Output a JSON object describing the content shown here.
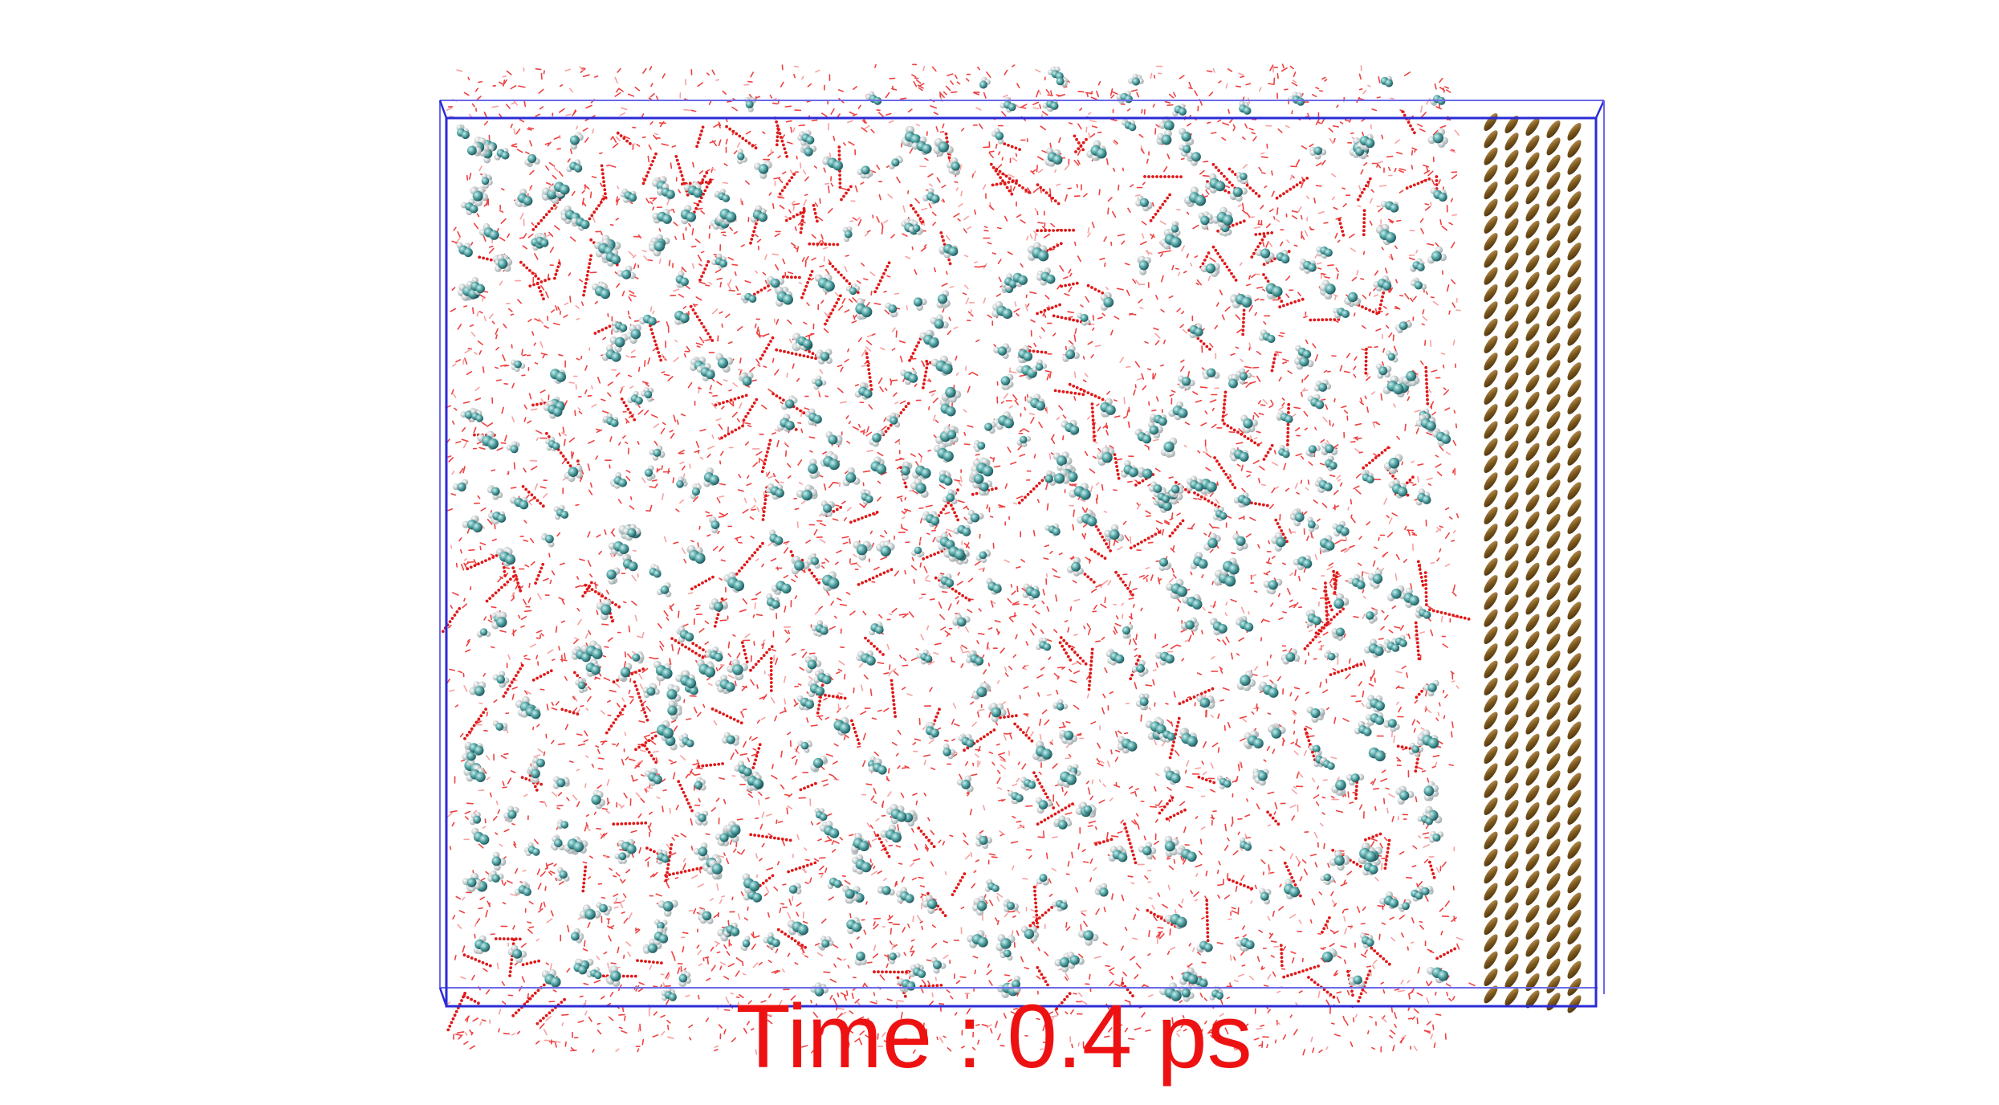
{
  "caption": {
    "time_text": "Time : 0.4 ps"
  },
  "scene": {
    "description_kind": "molecular dynamics snapshot",
    "colors": {
      "box_edge": "#2b2bd6",
      "water_oxygen": "#ee2222",
      "solute_carbon": "#3d8a8a",
      "solute_hydrogen": "#e8eeee",
      "slab_atom": "#8a6420",
      "caption": "#ee1111"
    }
  }
}
